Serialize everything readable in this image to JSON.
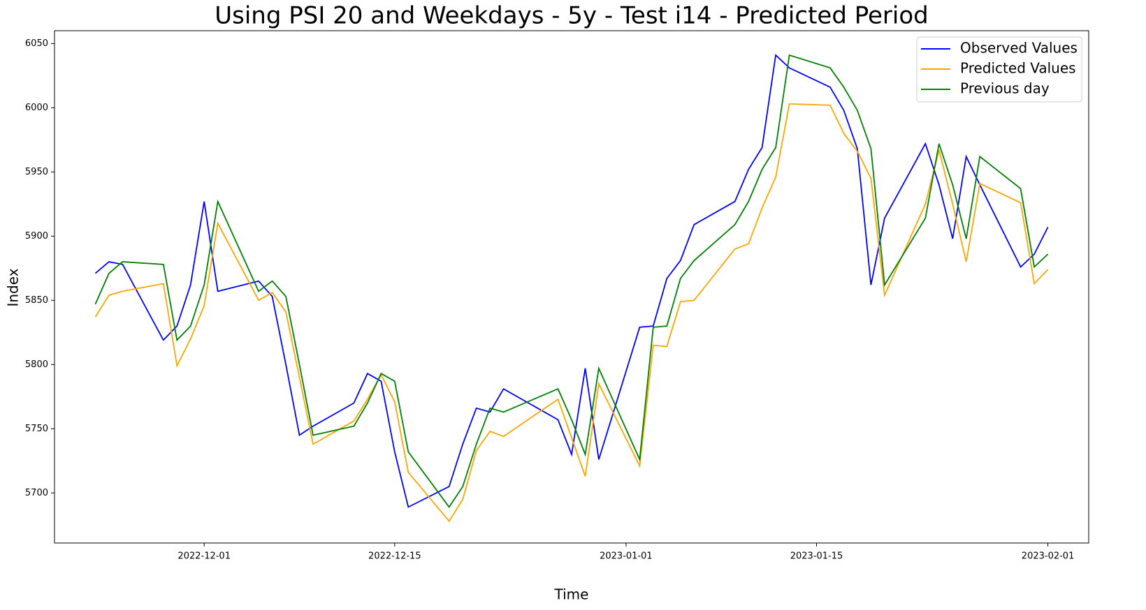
{
  "chart_data": {
    "type": "line",
    "title": "Using PSI 20 and Weekdays - 5y - Test i14 - Predicted Period",
    "x_label": "Time",
    "y_label": "Index",
    "x": [
      "2022-11-23",
      "2022-11-24",
      "2022-11-25",
      "2022-11-28",
      "2022-11-29",
      "2022-11-30",
      "2022-12-01",
      "2022-12-02",
      "2022-12-05",
      "2022-12-06",
      "2022-12-07",
      "2022-12-08",
      "2022-12-09",
      "2022-12-12",
      "2022-12-13",
      "2022-12-14",
      "2022-12-15",
      "2022-12-16",
      "2022-12-19",
      "2022-12-20",
      "2022-12-21",
      "2022-12-22",
      "2022-12-23",
      "2022-12-27",
      "2022-12-28",
      "2022-12-29",
      "2022-12-30",
      "2023-01-02",
      "2023-01-03",
      "2023-01-04",
      "2023-01-05",
      "2023-01-06",
      "2023-01-09",
      "2023-01-10",
      "2023-01-11",
      "2023-01-12",
      "2023-01-13",
      "2023-01-16",
      "2023-01-17",
      "2023-01-18",
      "2023-01-19",
      "2023-01-20",
      "2023-01-23",
      "2023-01-24",
      "2023-01-25",
      "2023-01-26",
      "2023-01-27",
      "2023-01-30",
      "2023-01-31",
      "2023-02-01"
    ],
    "series": [
      {
        "name": "Observed Values",
        "color": "#0000ff",
        "values": [
          5871,
          5880,
          5878,
          5819,
          5830,
          5862,
          5927,
          5857,
          5865,
          5853,
          5800,
          5745,
          5752,
          5770,
          5793,
          5787,
          5732,
          5689,
          5705,
          5738,
          5766,
          5763,
          5781,
          5757,
          5730,
          5797,
          5726,
          5829,
          5830,
          5867,
          5881,
          5909,
          5927,
          5952,
          5969,
          6041,
          6031,
          6016,
          5998,
          5968,
          5862,
          5914,
          5972,
          5940,
          5898,
          5962,
          5940,
          5876,
          5886,
          5907
        ]
      },
      {
        "name": "Predicted Values",
        "color": "#ffa500",
        "values": [
          5837,
          5854,
          5857,
          5863,
          5799,
          5820,
          5846,
          5910,
          5850,
          5856,
          5841,
          5790,
          5738,
          5756,
          5773,
          5792,
          5771,
          5716,
          5678,
          5695,
          5733,
          5748,
          5744,
          5773,
          5743,
          5713,
          5785,
          5721,
          5815,
          5814,
          5849,
          5850,
          5890,
          5894,
          5922,
          5946,
          6003,
          6002,
          5980,
          5966,
          5945,
          5854,
          5925,
          5967,
          5925,
          5880,
          5941,
          5926,
          5863,
          5874
        ]
      },
      {
        "name": "Previous day",
        "color": "#008000",
        "values": [
          5847,
          5871,
          5880,
          5878,
          5819,
          5830,
          5862,
          5927,
          5857,
          5865,
          5853,
          5800,
          5745,
          5752,
          5770,
          5793,
          5787,
          5732,
          5689,
          5705,
          5738,
          5766,
          5763,
          5781,
          5757,
          5730,
          5797,
          5726,
          5829,
          5830,
          5867,
          5881,
          5909,
          5927,
          5952,
          5969,
          6041,
          6031,
          6016,
          5998,
          5968,
          5862,
          5914,
          5972,
          5940,
          5898,
          5962,
          5937,
          5876,
          5886
        ]
      }
    ],
    "xlim": [
      "2022-11-20",
      "2023-02-04"
    ],
    "xticks": [
      "2022-12-01",
      "2022-12-15",
      "2023-01-01",
      "2023-01-15",
      "2023-02-01"
    ],
    "ylim": [
      5661,
      6060
    ],
    "yticks": [
      5700,
      5750,
      5800,
      5850,
      5900,
      5950,
      6000,
      6050
    ],
    "grid": false,
    "legend": "upper right"
  }
}
